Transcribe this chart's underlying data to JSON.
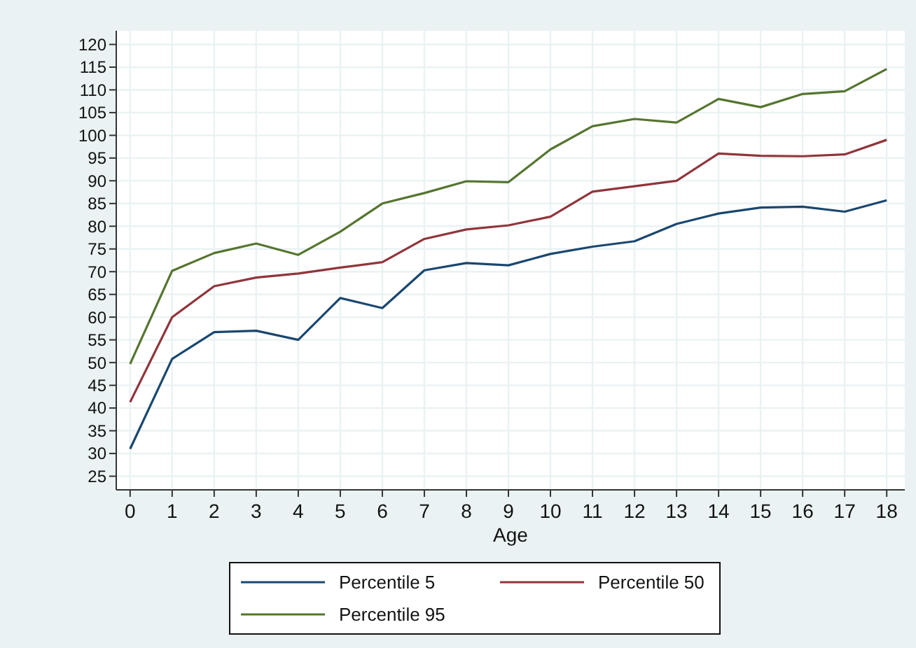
{
  "chart_data": {
    "type": "line",
    "xlabel": "Age",
    "x": [
      0,
      1,
      2,
      3,
      4,
      5,
      6,
      7,
      8,
      9,
      10,
      11,
      12,
      13,
      14,
      15,
      16,
      17,
      18
    ],
    "series": [
      {
        "name": "Percentile 5",
        "color": "#1a476f",
        "values": [
          31,
          50.8,
          56.7,
          57,
          55,
          64.2,
          62,
          70.3,
          71.9,
          71.4,
          73.9,
          75.5,
          76.7,
          80.5,
          82.8,
          84.1,
          84.3,
          83.2,
          85.7
        ]
      },
      {
        "name": "Percentile 50",
        "color": "#90353b",
        "values": [
          41.3,
          60,
          66.8,
          68.7,
          69.6,
          70.9,
          72.1,
          77.2,
          79.3,
          80.2,
          82.1,
          87.6,
          88.8,
          90,
          96,
          95.5,
          95.4,
          95.8,
          99
        ]
      },
      {
        "name": "Percentile 95",
        "color": "#55752f",
        "values": [
          49.7,
          70.2,
          74.1,
          76.2,
          73.7,
          78.8,
          85,
          87.3,
          89.9,
          89.7,
          96.9,
          102,
          103.6,
          102.8,
          108,
          106.2,
          109.1,
          109.7,
          114.6
        ]
      }
    ],
    "xlim": [
      -0.33,
      18.43
    ],
    "xticks": [
      0,
      1,
      2,
      3,
      4,
      5,
      6,
      7,
      8,
      9,
      10,
      11,
      12,
      13,
      14,
      15,
      16,
      17,
      18
    ],
    "ylim": [
      22,
      123
    ],
    "yticks": [
      25,
      30,
      35,
      40,
      45,
      50,
      55,
      60,
      65,
      70,
      75,
      80,
      85,
      90,
      95,
      100,
      105,
      110,
      115,
      120
    ],
    "grid": true,
    "legend": "bottom",
    "line_style": "solid",
    "marker": "none"
  }
}
